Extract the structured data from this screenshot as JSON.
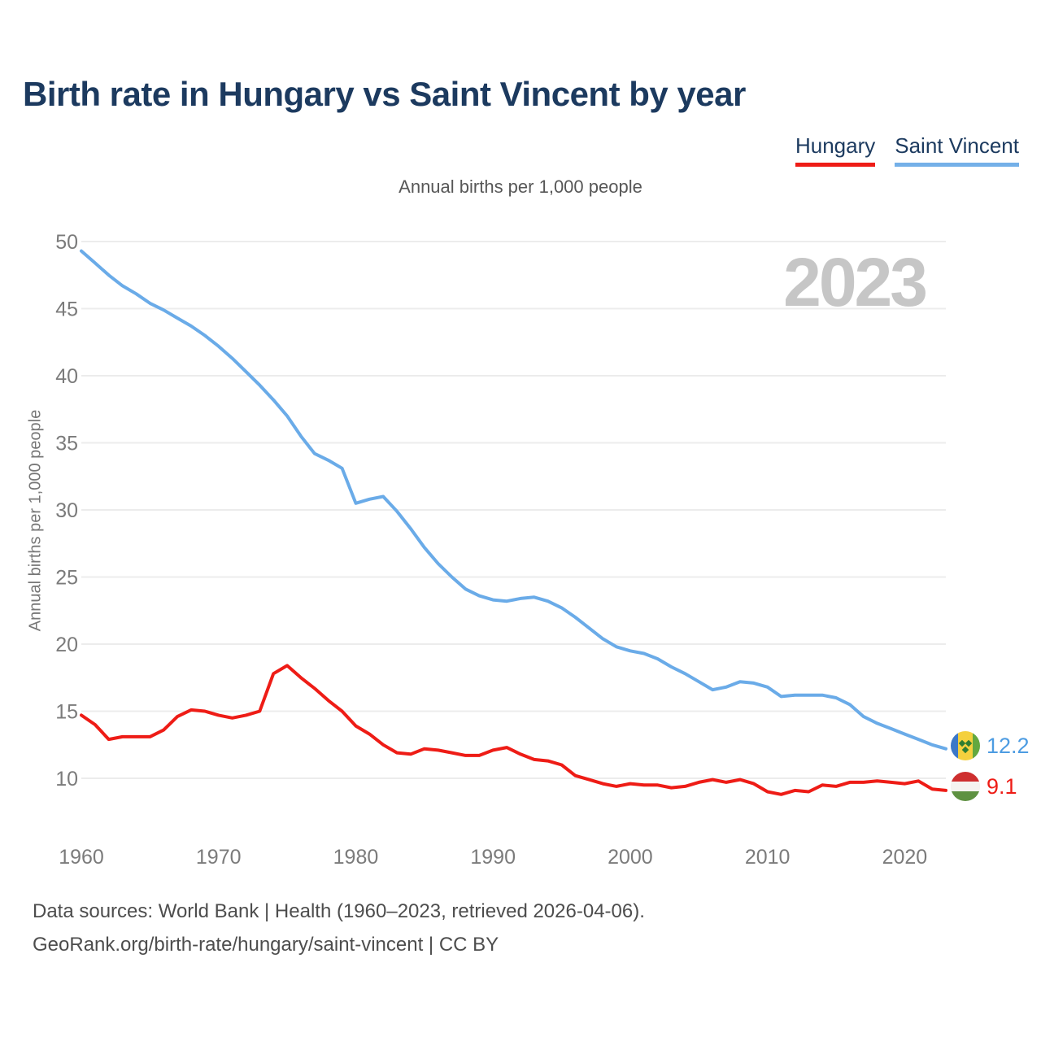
{
  "header": {
    "title": "Birth rate in Hungary vs Saint Vincent by year",
    "subtitle": "Annual births per 1,000 people"
  },
  "legend": {
    "items": [
      {
        "label": "Hungary",
        "color": "#ee1c16"
      },
      {
        "label": "Saint Vincent",
        "color": "#74b0e8"
      }
    ]
  },
  "watermark": "2023",
  "axes": {
    "y_title": "Annual births per 1,000 people"
  },
  "footer": {
    "line1": "Data sources: World Bank | Health (1960–2023, retrieved 2026-04-06).",
    "line2": "GeoRank.org/birth-rate/hungary/saint-vincent | CC BY"
  },
  "chart_data": {
    "type": "line",
    "title": "Birth rate in Hungary vs Saint Vincent by year",
    "ylabel": "Annual births per 1,000 people",
    "grid": "horizontal",
    "legend_position": "top-right",
    "x_start": 1960,
    "x_end": 2023,
    "ylim": [
      8.5,
      50
    ],
    "yticks": [
      10,
      15,
      20,
      25,
      30,
      35,
      40,
      45,
      50
    ],
    "xticks": [
      1960,
      1970,
      1980,
      1990,
      2000,
      2010,
      2020
    ],
    "x": [
      1960,
      1961,
      1962,
      1963,
      1964,
      1965,
      1966,
      1967,
      1968,
      1969,
      1970,
      1971,
      1972,
      1973,
      1974,
      1975,
      1976,
      1977,
      1978,
      1979,
      1980,
      1981,
      1982,
      1983,
      1984,
      1985,
      1986,
      1987,
      1988,
      1989,
      1990,
      1991,
      1992,
      1993,
      1994,
      1995,
      1996,
      1997,
      1998,
      1999,
      2000,
      2001,
      2002,
      2003,
      2004,
      2005,
      2006,
      2007,
      2008,
      2009,
      2010,
      2011,
      2012,
      2013,
      2014,
      2015,
      2016,
      2017,
      2018,
      2019,
      2020,
      2021,
      2022,
      2023
    ],
    "series": [
      {
        "name": "Hungary",
        "color": "#ee1c16",
        "values": [
          14.7,
          14.0,
          12.9,
          13.1,
          13.1,
          13.1,
          13.6,
          14.6,
          15.1,
          15.0,
          14.7,
          14.5,
          14.7,
          15.0,
          17.8,
          18.4,
          17.5,
          16.7,
          15.8,
          15.0,
          13.9,
          13.3,
          12.5,
          11.9,
          11.8,
          12.2,
          12.1,
          11.9,
          11.7,
          11.7,
          12.1,
          12.3,
          11.8,
          11.4,
          11.3,
          11.0,
          10.2,
          9.9,
          9.6,
          9.4,
          9.6,
          9.5,
          9.5,
          9.3,
          9.4,
          9.7,
          9.9,
          9.7,
          9.9,
          9.6,
          9.0,
          8.8,
          9.1,
          9.0,
          9.5,
          9.4,
          9.7,
          9.7,
          9.8,
          9.7,
          9.6,
          9.8,
          9.2,
          9.1
        ]
      },
      {
        "name": "Saint Vincent",
        "color": "#6aabe8",
        "values": [
          49.3,
          48.4,
          47.5,
          46.7,
          46.1,
          45.4,
          44.9,
          44.3,
          43.7,
          43.0,
          42.2,
          41.3,
          40.3,
          39.3,
          38.2,
          37.0,
          35.5,
          34.2,
          33.7,
          33.1,
          30.5,
          30.8,
          31.0,
          29.9,
          28.6,
          27.2,
          26.0,
          25.0,
          24.1,
          23.6,
          23.3,
          23.2,
          23.4,
          23.5,
          23.2,
          22.7,
          22.0,
          21.2,
          20.4,
          19.8,
          19.5,
          19.3,
          18.9,
          18.3,
          17.8,
          17.2,
          16.6,
          16.8,
          17.2,
          17.1,
          16.8,
          16.1,
          16.2,
          16.2,
          16.2,
          16.0,
          15.5,
          14.6,
          14.1,
          13.7,
          13.3,
          12.9,
          12.5,
          12.2
        ]
      }
    ],
    "end_labels": [
      {
        "series": "Saint Vincent",
        "value": "12.2",
        "flag": "saint-vincent",
        "color": "#4d9ce2"
      },
      {
        "series": "Hungary",
        "value": "9.1",
        "flag": "hungary",
        "color": "#ee1c16"
      }
    ]
  }
}
